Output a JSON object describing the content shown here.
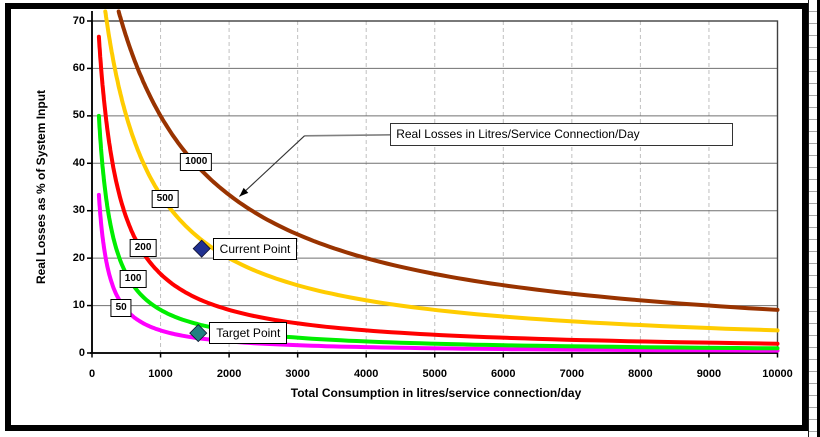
{
  "chart_data": {
    "type": "line",
    "title": "",
    "xlabel": "Total Consumption in litres/service connection/day",
    "ylabel": "Real Losses as % of System Input",
    "xlim": [
      0,
      10000
    ],
    "ylim": [
      0,
      70
    ],
    "x_ticks": [
      0,
      1000,
      2000,
      3000,
      4000,
      5000,
      6000,
      7000,
      8000,
      9000,
      10000
    ],
    "y_ticks": [
      0,
      10,
      20,
      30,
      40,
      50,
      60,
      70
    ],
    "grid": {
      "horizontal": "solid",
      "vertical": "dashed"
    },
    "relationship": "real_losses_pct = 100 * loss / (loss + consumption)",
    "clip_pct_top": 72,
    "series": [
      {
        "name": "50",
        "loss_l_per_conn_day": 50,
        "color": "#ff00ff",
        "x_start": 100,
        "points": [
          [
            100,
            33.3
          ],
          [
            200,
            20
          ],
          [
            300,
            14.3
          ],
          [
            500,
            9.1
          ],
          [
            700,
            6.7
          ],
          [
            1000,
            4.8
          ],
          [
            1500,
            3.2
          ],
          [
            2000,
            2.4
          ],
          [
            3000,
            1.6
          ],
          [
            4000,
            1.2
          ],
          [
            5000,
            1.0
          ],
          [
            6000,
            0.8
          ],
          [
            7000,
            0.7
          ],
          [
            8000,
            0.6
          ],
          [
            9000,
            0.6
          ],
          [
            10000,
            0.5
          ]
        ]
      },
      {
        "name": "100",
        "loss_l_per_conn_day": 100,
        "color": "#00ee00",
        "x_start": 100,
        "points": [
          [
            100,
            50
          ],
          [
            200,
            33.3
          ],
          [
            300,
            25
          ],
          [
            500,
            16.7
          ],
          [
            700,
            12.5
          ],
          [
            1000,
            9.1
          ],
          [
            1500,
            6.3
          ],
          [
            2000,
            4.8
          ],
          [
            3000,
            3.2
          ],
          [
            4000,
            2.4
          ],
          [
            5000,
            2.0
          ],
          [
            6000,
            1.6
          ],
          [
            7000,
            1.4
          ],
          [
            8000,
            1.2
          ],
          [
            9000,
            1.1
          ],
          [
            10000,
            1.0
          ]
        ]
      },
      {
        "name": "200",
        "loss_l_per_conn_day": 200,
        "color": "#ff0000",
        "x_start": 100,
        "points": [
          [
            100,
            66.7
          ],
          [
            200,
            50
          ],
          [
            300,
            40
          ],
          [
            500,
            28.6
          ],
          [
            700,
            22.2
          ],
          [
            1000,
            16.7
          ],
          [
            1500,
            11.8
          ],
          [
            2000,
            9.1
          ],
          [
            3000,
            6.3
          ],
          [
            4000,
            4.8
          ],
          [
            5000,
            3.8
          ],
          [
            6000,
            3.2
          ],
          [
            7000,
            2.8
          ],
          [
            8000,
            2.4
          ],
          [
            9000,
            2.2
          ],
          [
            10000,
            2.0
          ]
        ]
      },
      {
        "name": "500",
        "loss_l_per_conn_day": 500,
        "color": "#ffcc00",
        "x_start": 194,
        "points": [
          [
            194,
            72
          ],
          [
            300,
            62.5
          ],
          [
            500,
            50
          ],
          [
            700,
            41.7
          ],
          [
            1000,
            33.3
          ],
          [
            1500,
            25
          ],
          [
            2000,
            20
          ],
          [
            3000,
            14.3
          ],
          [
            4000,
            11.1
          ],
          [
            5000,
            9.1
          ],
          [
            6000,
            7.7
          ],
          [
            7000,
            6.7
          ],
          [
            8000,
            5.9
          ],
          [
            9000,
            5.3
          ],
          [
            10000,
            4.8
          ]
        ]
      },
      {
        "name": "1000",
        "loss_l_per_conn_day": 1000,
        "color": "#993300",
        "x_start": 389,
        "points": [
          [
            389,
            72
          ],
          [
            500,
            66.7
          ],
          [
            700,
            58.8
          ],
          [
            1000,
            50
          ],
          [
            1500,
            40
          ],
          [
            2000,
            33.3
          ],
          [
            3000,
            25
          ],
          [
            4000,
            20
          ],
          [
            5000,
            16.7
          ],
          [
            6000,
            14.3
          ],
          [
            7000,
            12.5
          ],
          [
            8000,
            11.1
          ],
          [
            9000,
            10
          ],
          [
            10000,
            9.1
          ]
        ]
      }
    ],
    "curve_labels": [
      {
        "text": "1000",
        "x": 1520,
        "y": 40.2
      },
      {
        "text": "500",
        "x": 1065,
        "y": 32.4
      },
      {
        "text": "200",
        "x": 745,
        "y": 22.1
      },
      {
        "text": "100",
        "x": 600,
        "y": 15.6
      },
      {
        "text": "50",
        "x": 425,
        "y": 9.4
      }
    ],
    "data_points": [
      {
        "label": "Current Point",
        "x": 1600,
        "y": 22,
        "marker": "diamond",
        "color": "#203090"
      },
      {
        "label": "Target Point",
        "x": 1550,
        "y": 4.2,
        "marker": "diamond",
        "color": "#208080"
      }
    ],
    "annotation": {
      "text": "Real Losses in Litres/Service Connection/Day",
      "box_x": 4350,
      "box_y": 46,
      "elbow_x": 3100,
      "target_x": 2150,
      "target_y": 33
    },
    "colors": {
      "grid_horizontal": "#707070",
      "grid_vertical": "#c0c0c0",
      "plot_border": "#404040",
      "axis": "#000000"
    }
  }
}
